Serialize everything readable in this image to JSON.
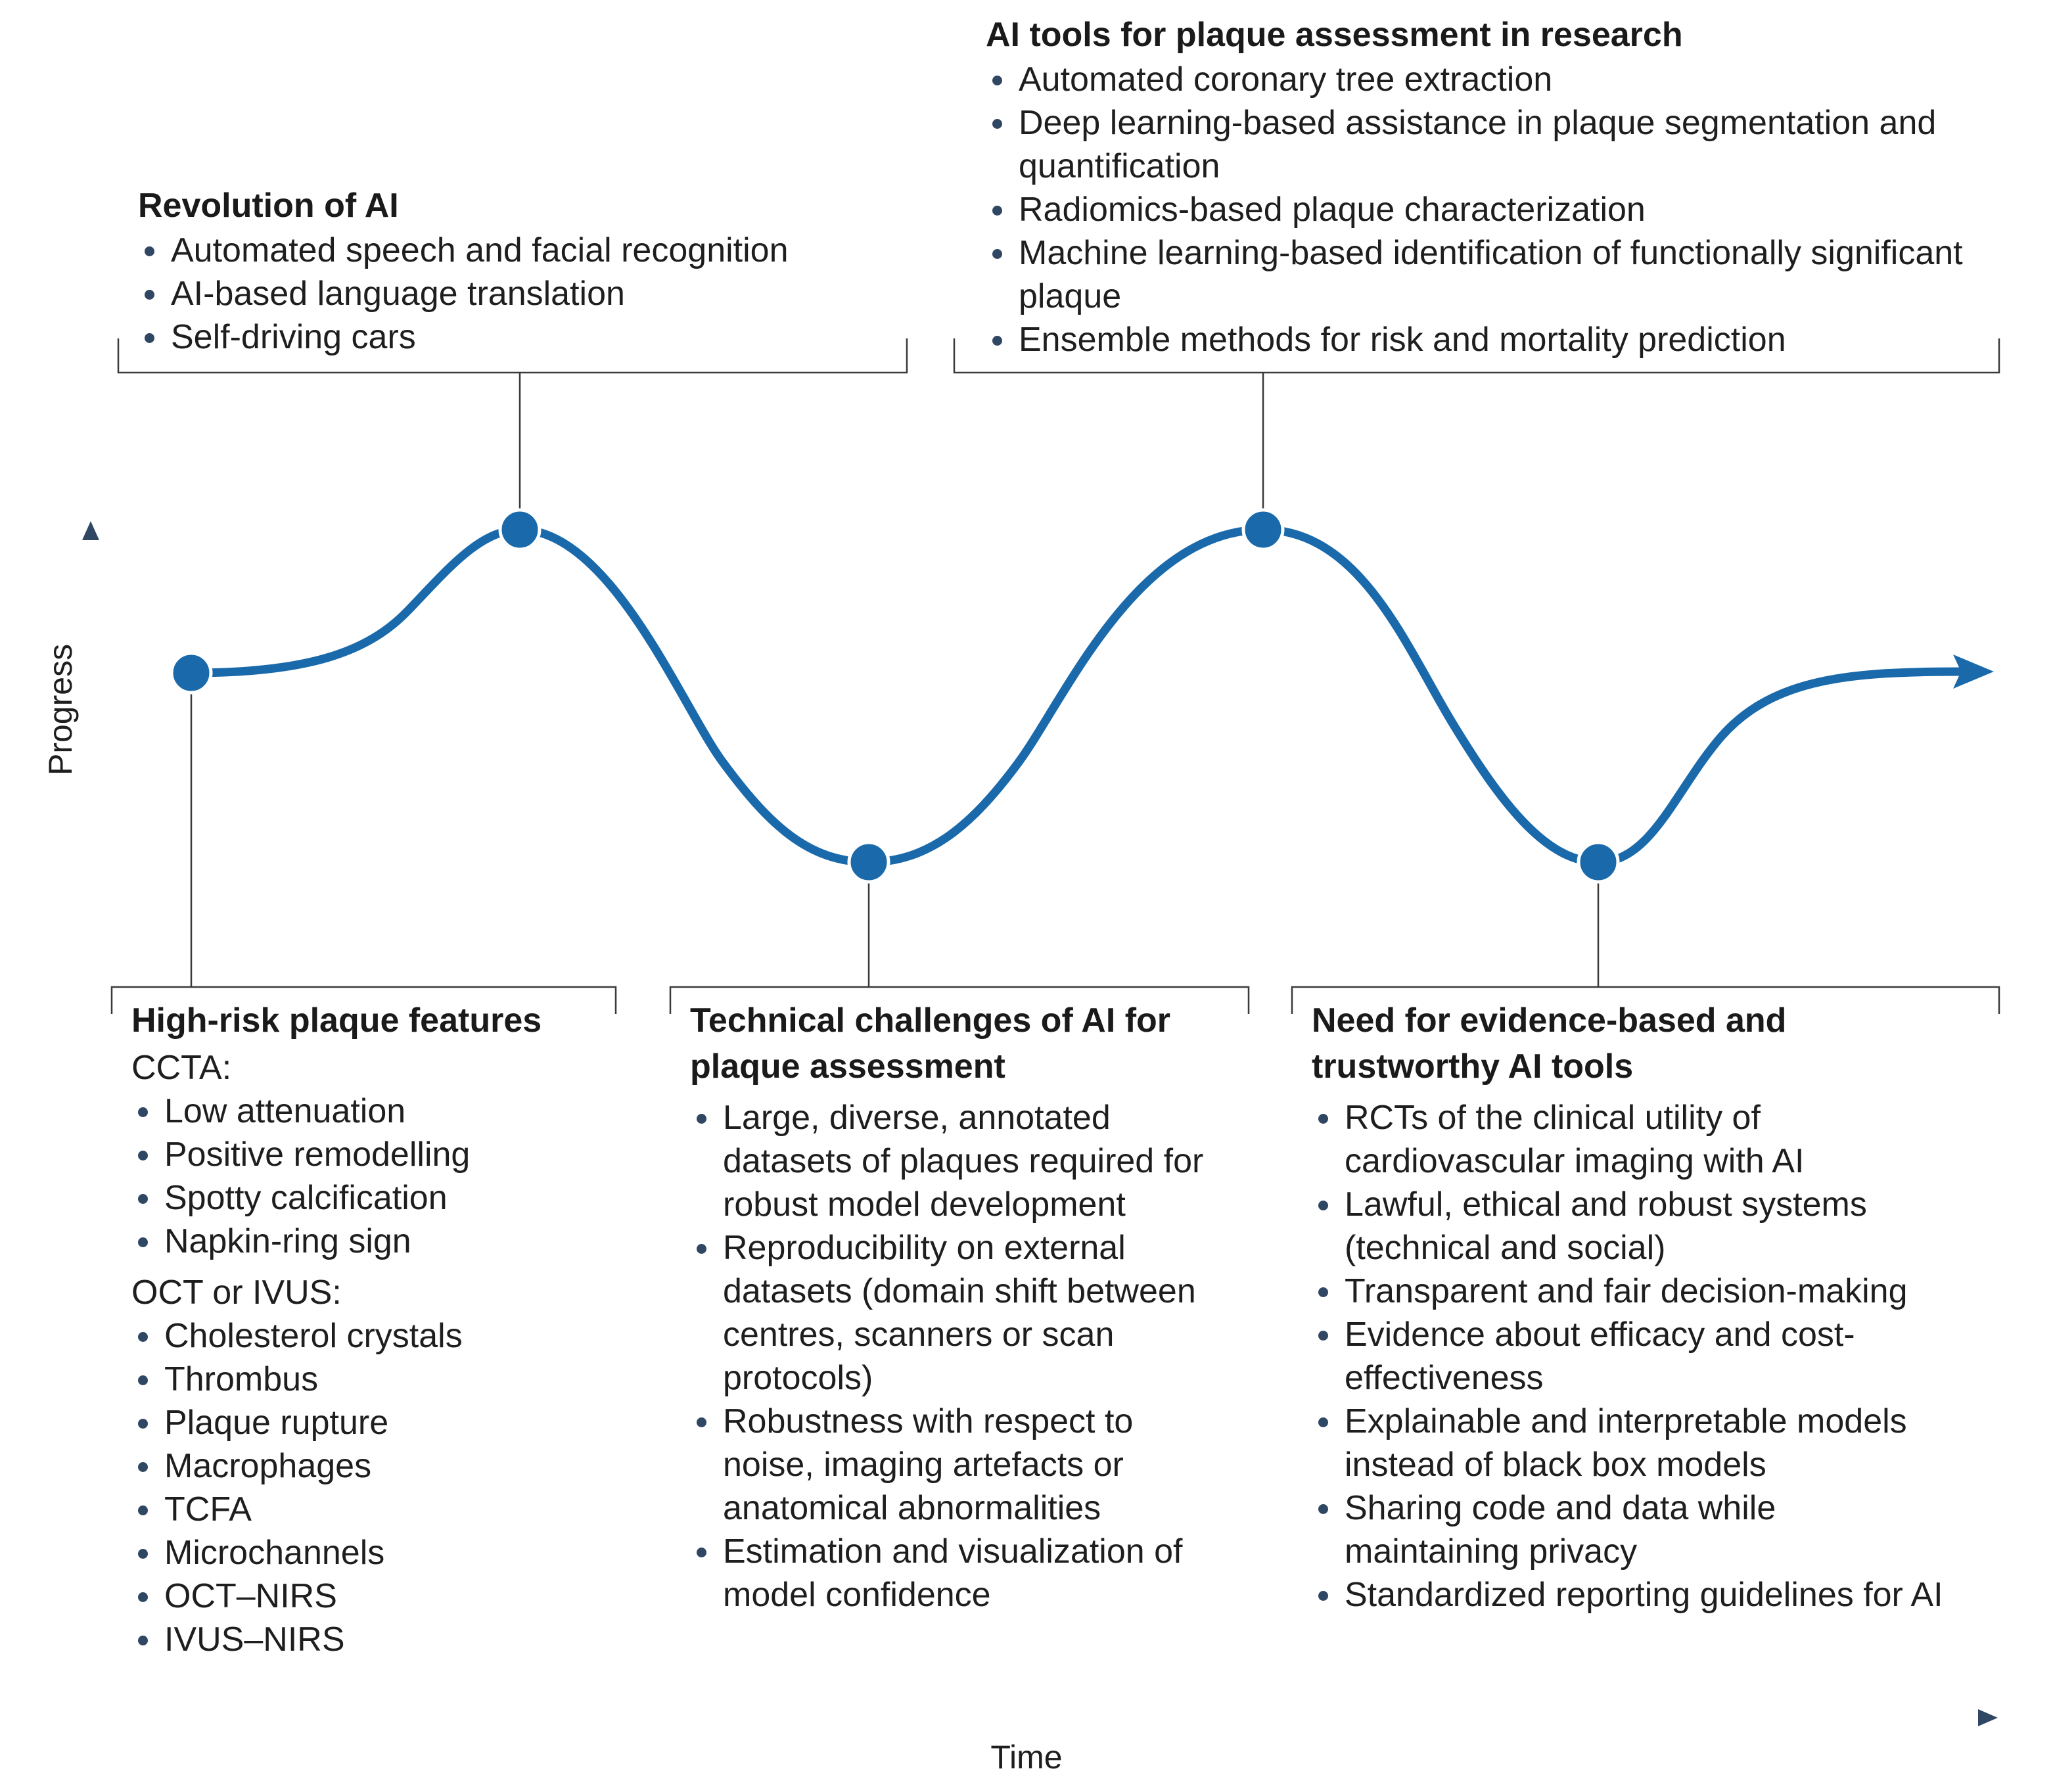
{
  "colors": {
    "curve": "#1a6aab",
    "node": "#1a6aab",
    "axis": "#2f4763",
    "bracket": "#3a3a3a"
  },
  "axes": {
    "x_label": "Time",
    "y_label": "Progress"
  },
  "boxes": {
    "revolution": {
      "title": "Revolution of AI",
      "items": [
        "Automated speech and facial recognition",
        "AI-based language translation",
        "Self-driving cars"
      ]
    },
    "research_tools": {
      "title": "AI tools for plaque assessment in research",
      "items": [
        "Automated coronary tree extraction",
        "Deep learning-based assistance in plaque segmentation and quantification",
        "Radiomics-based plaque characterization",
        "Machine learning-based identification of functionally significant plaque",
        "Ensemble methods for risk and mortality prediction"
      ]
    },
    "high_risk": {
      "title": "High-risk plaque features",
      "ccta_label": "CCTA:",
      "ccta_items": [
        "Low attenuation",
        "Positive remodelling",
        "Spotty calcification",
        "Napkin-ring sign"
      ],
      "oct_label": "OCT or IVUS:",
      "oct_items": [
        "Cholesterol crystals",
        "Thrombus",
        "Plaque rupture",
        "Macrophages",
        "TCFA",
        "Microchannels",
        "OCT–NIRS",
        "IVUS–NIRS"
      ]
    },
    "challenges": {
      "title": "Technical challenges of AI for plaque assessment",
      "items": [
        "Large, diverse, annotated datasets of plaques required for robust model development",
        "Reproducibility on external datasets (domain shift between centres, scanners or scan protocols)",
        "Robustness with respect to noise, imaging artefacts or anatomical abnormalities",
        "Estimation and visualization of model confidence"
      ]
    },
    "evidence": {
      "title": "Need for evidence-based and trustworthy AI tools",
      "items": [
        "RCTs of the clinical utility of cardiovascular imaging with AI",
        "Lawful, ethical and robust systems (technical and social)",
        "Transparent and fair decision-making",
        "Evidence about efficacy and cost-effectiveness",
        "Explainable and interpretable models instead of black box models",
        "Sharing code and data while maintaining privacy",
        "Standardized reporting guidelines for AI"
      ]
    }
  }
}
